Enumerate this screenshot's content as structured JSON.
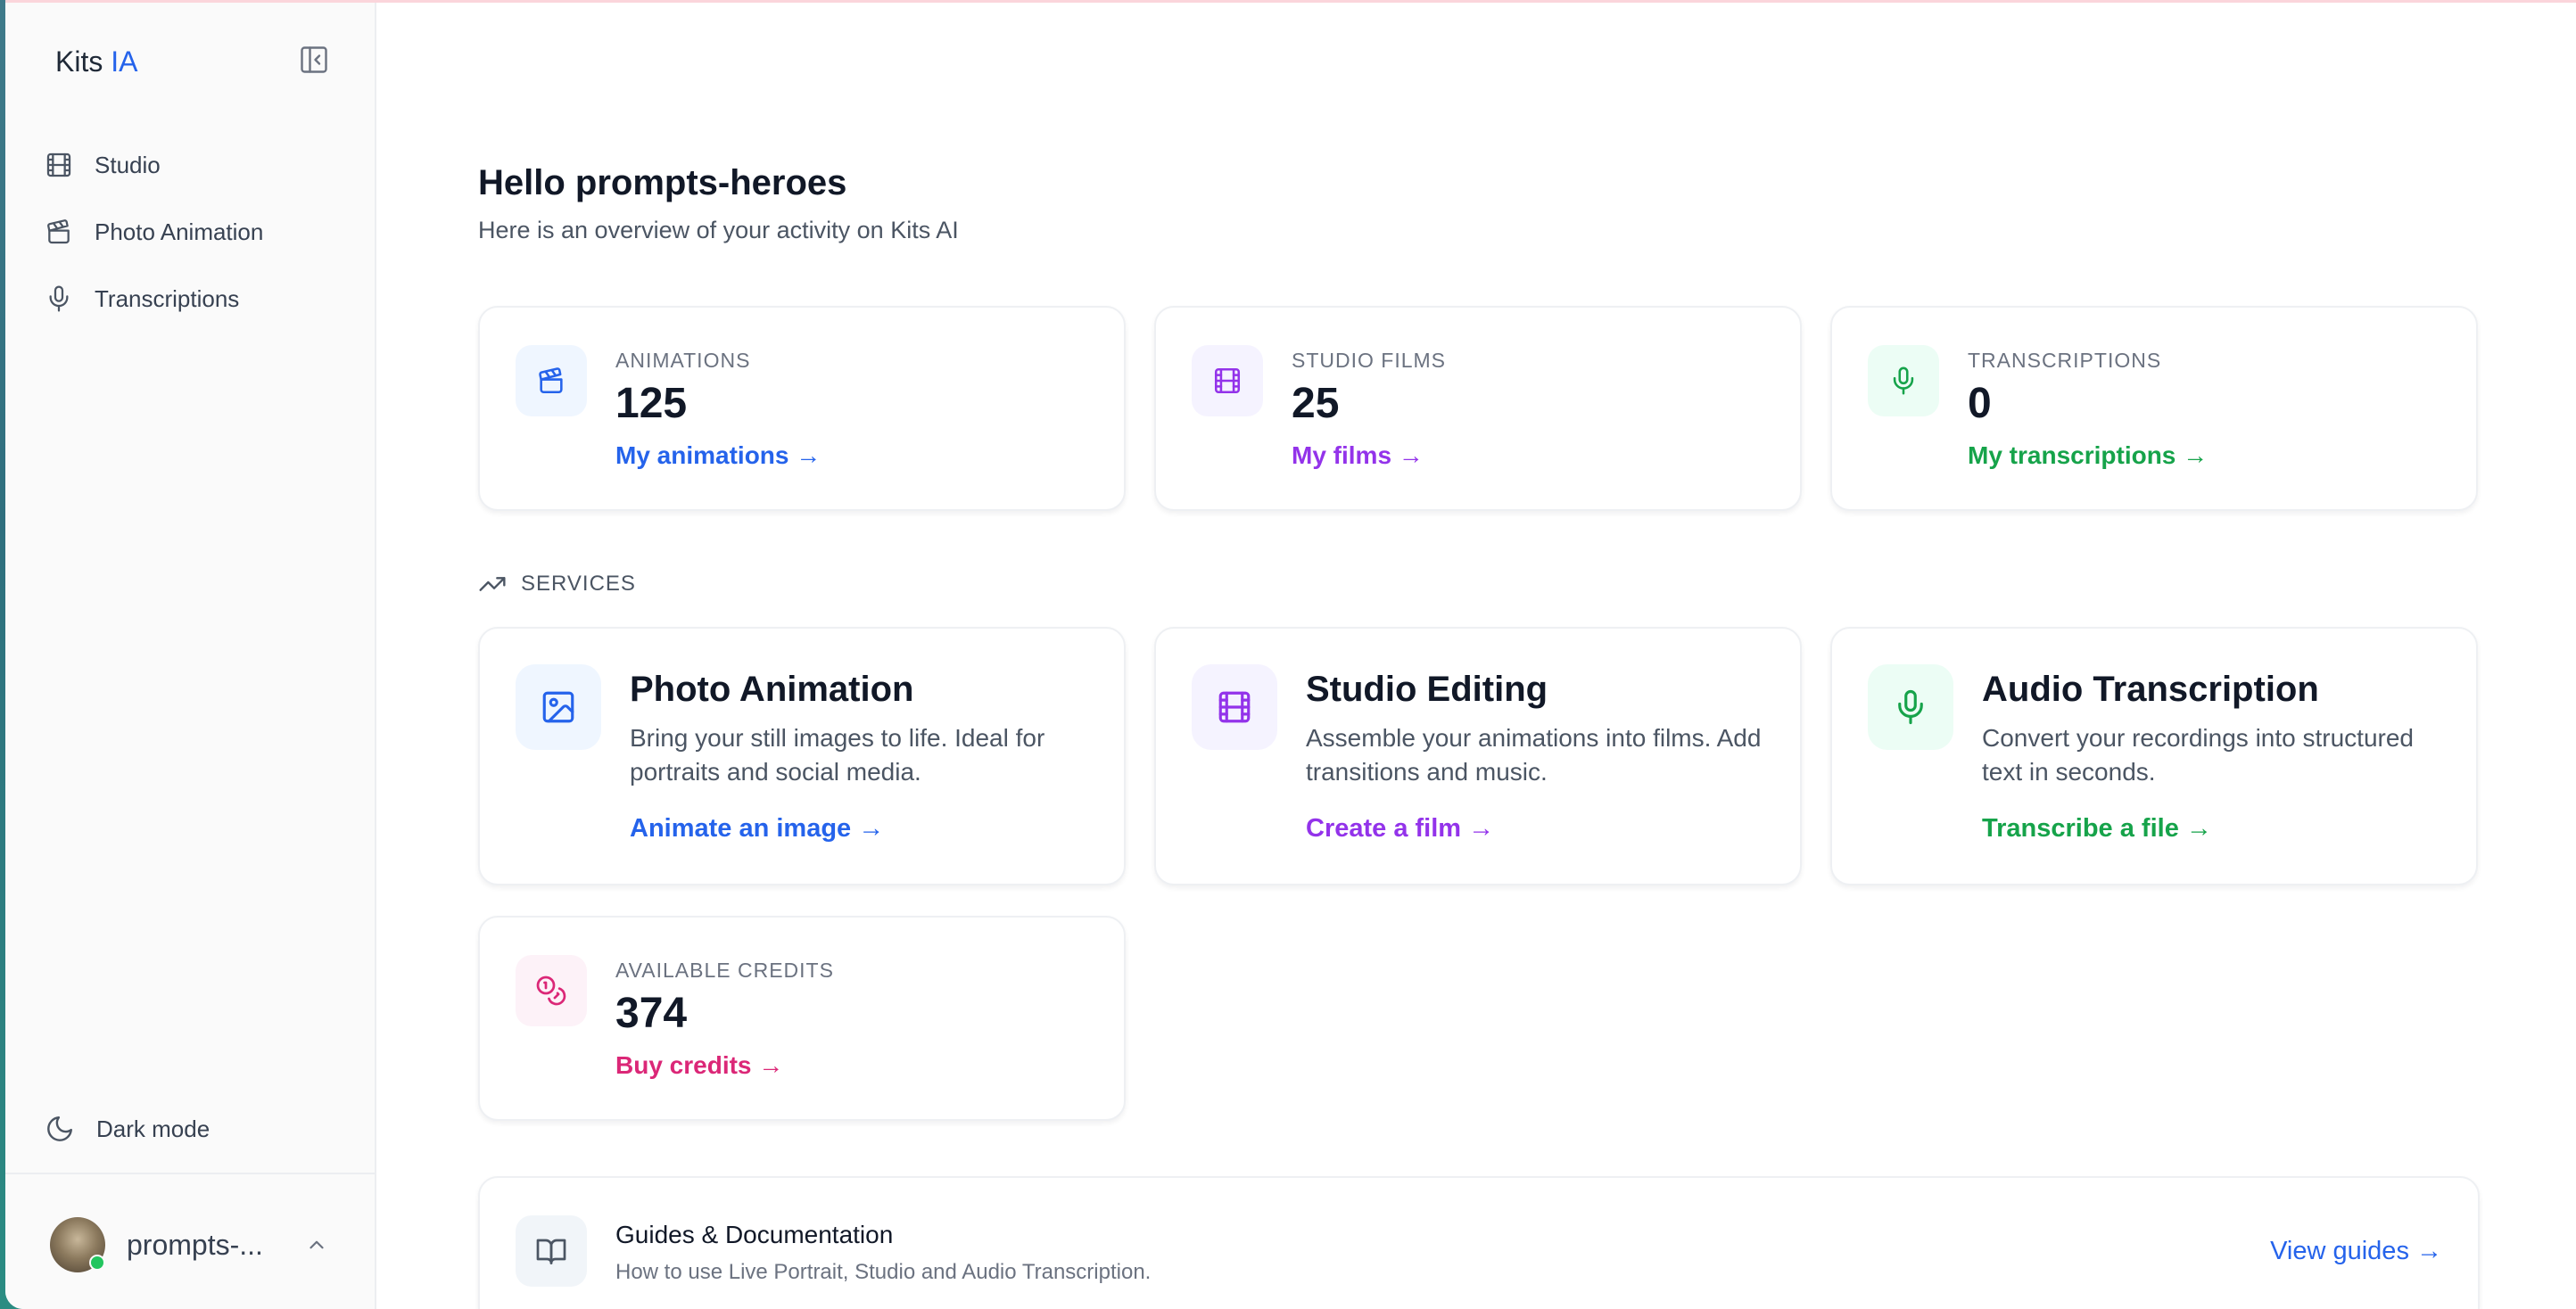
{
  "sidebar": {
    "brand_main": "Kits",
    "brand_accent": "IA",
    "items": [
      {
        "label": "Studio",
        "icon": "film-icon"
      },
      {
        "label": "Photo Animation",
        "icon": "clapperboard-icon"
      },
      {
        "label": "Transcriptions",
        "icon": "microphone-icon"
      }
    ],
    "dark_mode_label": "Dark mode",
    "user_name": "prompts-..."
  },
  "header": {
    "greeting": "Hello prompts-heroes",
    "subtitle": "Here is an overview of your activity on Kits AI"
  },
  "stats": [
    {
      "label": "ANIMATIONS",
      "value": "125",
      "link": "My animations →",
      "color": "#2563eb",
      "icon": "clapperboard-icon"
    },
    {
      "label": "STUDIO FILMS",
      "value": "25",
      "link": "My films →",
      "color": "#9333ea",
      "icon": "film-icon"
    },
    {
      "label": "TRANSCRIPTIONS",
      "value": "0",
      "link": "My transcriptions →",
      "color": "#16a34a",
      "icon": "microphone-icon"
    }
  ],
  "services": {
    "section_label": "SERVICES",
    "items": [
      {
        "title": "Photo Animation",
        "description": "Bring your still images to life. Ideal for portraits and social media.",
        "link": "Animate an image →",
        "color": "#2563eb",
        "icon": "image-icon"
      },
      {
        "title": "Studio Editing",
        "description": "Assemble your animations into films. Add transitions and music.",
        "link": "Create a film →",
        "color": "#9333ea",
        "icon": "film-icon"
      },
      {
        "title": "Audio Transcription",
        "description": "Convert your recordings into structured text in seconds.",
        "link": "Transcribe a file →",
        "color": "#16a34a",
        "icon": "microphone-icon"
      }
    ]
  },
  "credits": {
    "label": "AVAILABLE CREDITS",
    "value": "374",
    "link": "Buy credits →",
    "color": "#db2777",
    "icon": "coins-icon"
  },
  "guides": {
    "title": "Guides & Documentation",
    "description": "How to use Live Portrait, Studio and Audio Transcription.",
    "link": "View guides →",
    "icon": "book-icon"
  }
}
